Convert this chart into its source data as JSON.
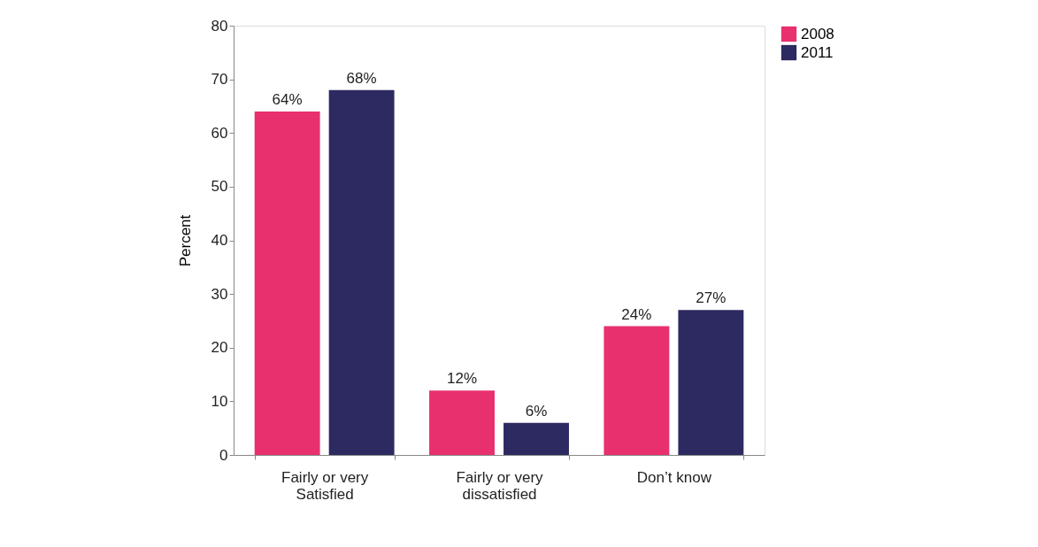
{
  "chart_data": {
    "type": "bar",
    "ylabel": "Percent",
    "categories": [
      "Fairly or very\nSatisfied",
      "Fairly or very\ndissatisfied",
      "Don’t know"
    ],
    "series": [
      {
        "name": "2008",
        "color": "#e8306e",
        "values": [
          64,
          12,
          24
        ],
        "value_labels": [
          "64%",
          "12%",
          "24%"
        ]
      },
      {
        "name": "2011",
        "color": "#2c2a60",
        "values": [
          68,
          6,
          27
        ],
        "value_labels": [
          "68%",
          "6%",
          "27%"
        ]
      }
    ],
    "ylim": [
      0,
      80
    ],
    "yticks": [
      0,
      10,
      20,
      30,
      40,
      50,
      60,
      70,
      80
    ],
    "grid": false,
    "legend": "right"
  }
}
